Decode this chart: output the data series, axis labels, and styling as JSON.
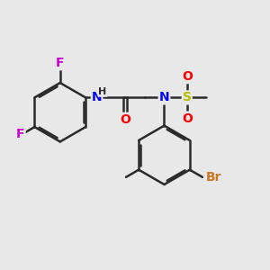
{
  "bg_color": "#e8e8e8",
  "bond_color": "#2a2a2a",
  "bond_width": 1.8,
  "atom_colors": {
    "F": "#cc00cc",
    "N": "#0000ff",
    "O": "#ff0000",
    "S": "#bbbb00",
    "Br": "#cc7722",
    "C": "#2a2a2a",
    "H": "#2a2a2a"
  },
  "font_size_atom": 10,
  "font_size_small": 8
}
